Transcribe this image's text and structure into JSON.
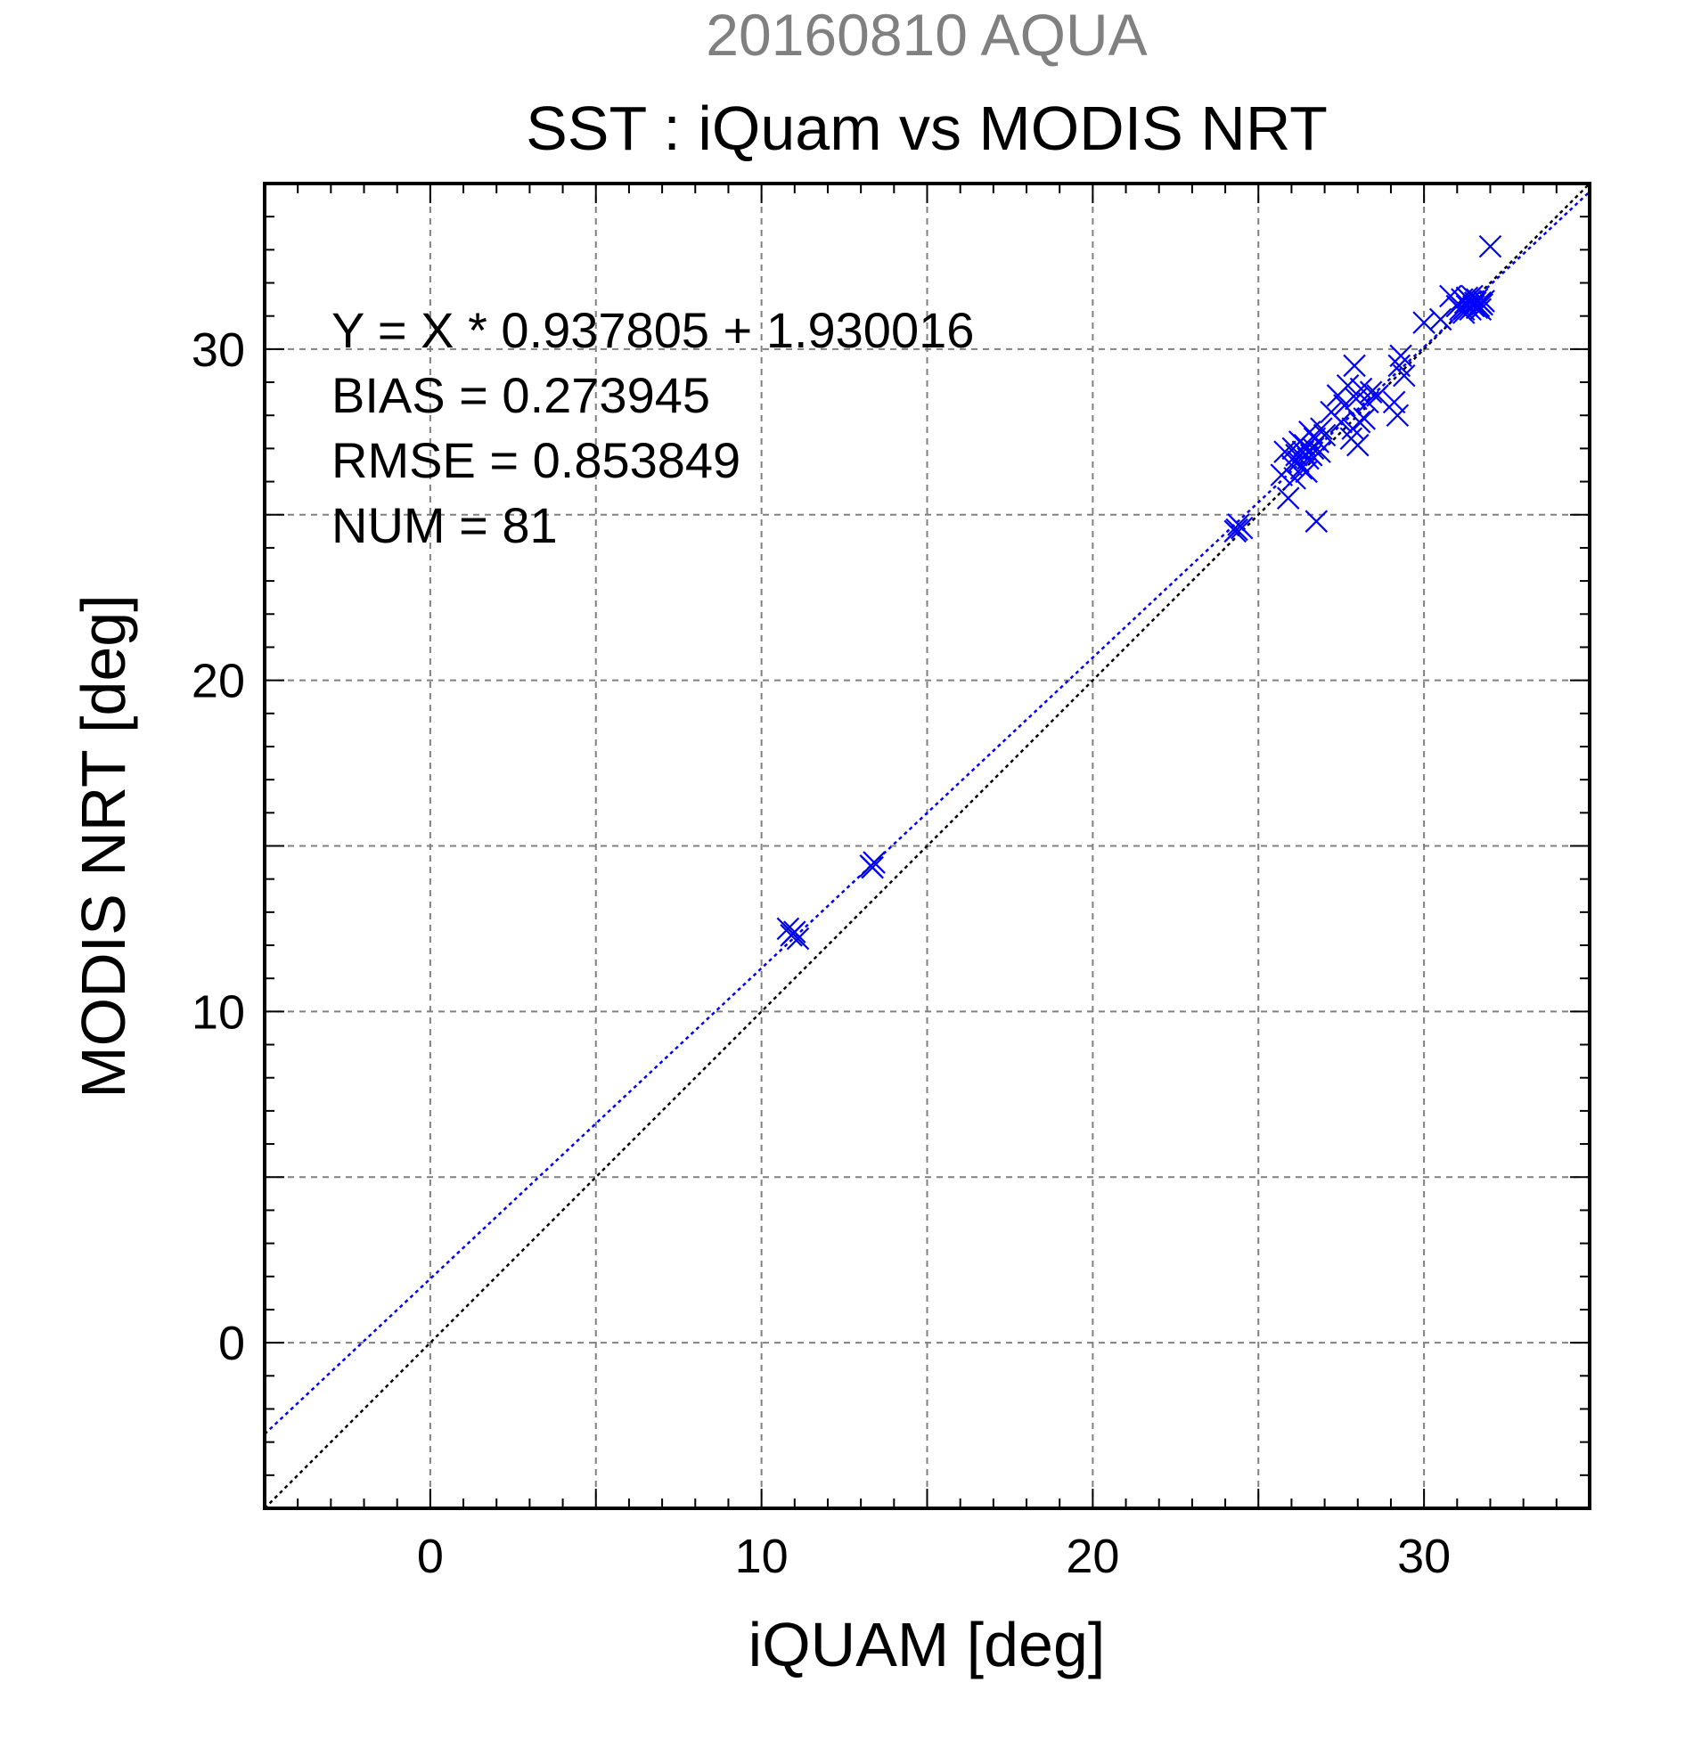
{
  "chart_data": {
    "type": "scatter",
    "header": "20160810 AQUA",
    "title": "SST : iQuam vs MODIS NRT",
    "xlabel": "iQUAM [deg]",
    "ylabel": "MODIS NRT [deg]",
    "xlim": [
      -5,
      35
    ],
    "ylim": [
      -5,
      35
    ],
    "xticks": [
      0,
      10,
      20,
      30
    ],
    "yticks": [
      0,
      10,
      20,
      30
    ],
    "xtick_labels": [
      "0",
      "10",
      "20",
      "30"
    ],
    "ytick_labels": [
      "0",
      "10",
      "20",
      "30"
    ],
    "grid": true,
    "marker": "x",
    "colors": {
      "points": "#0000ff",
      "fit_line": "#0000ff",
      "identity_line": "#000000",
      "header": "#808080",
      "grid": "#808080"
    },
    "annotations": [
      "Y = X * 0.937805 + 1.930016",
      "BIAS = 0.273945",
      "RMSE = 0.853849",
      "NUM = 81"
    ],
    "fit": {
      "slope": 0.937805,
      "intercept": 1.930016
    },
    "identity_line": true,
    "points": [
      [
        10.9,
        12.3
      ],
      [
        11.0,
        12.4
      ],
      [
        10.8,
        12.5
      ],
      [
        11.1,
        12.2
      ],
      [
        10.95,
        12.35
      ],
      [
        13.3,
        14.4
      ],
      [
        13.4,
        14.5
      ],
      [
        13.35,
        14.35
      ],
      [
        24.3,
        24.5
      ],
      [
        24.4,
        24.7
      ],
      [
        24.5,
        24.6
      ],
      [
        24.35,
        24.55
      ],
      [
        25.7,
        26.2
      ],
      [
        25.8,
        26.9
      ],
      [
        25.9,
        25.5
      ],
      [
        26.0,
        26.5
      ],
      [
        26.05,
        27.0
      ],
      [
        26.1,
        26.1
      ],
      [
        26.15,
        26.8
      ],
      [
        26.2,
        26.6
      ],
      [
        26.25,
        27.2
      ],
      [
        26.3,
        26.4
      ],
      [
        26.35,
        26.9
      ],
      [
        26.4,
        27.1
      ],
      [
        26.45,
        26.3
      ],
      [
        26.5,
        26.7
      ],
      [
        26.55,
        27.5
      ],
      [
        26.6,
        26.8
      ],
      [
        26.65,
        27.0
      ],
      [
        26.7,
        27.3
      ],
      [
        26.75,
        24.8
      ],
      [
        26.8,
        27.2
      ],
      [
        26.85,
        26.9
      ],
      [
        26.9,
        27.6
      ],
      [
        27.0,
        27.4
      ],
      [
        27.2,
        28.1
      ],
      [
        27.4,
        28.6
      ],
      [
        27.5,
        27.8
      ],
      [
        27.6,
        28.3
      ],
      [
        27.7,
        28.9
      ],
      [
        27.8,
        27.3
      ],
      [
        27.85,
        27.6
      ],
      [
        27.9,
        29.5
      ],
      [
        27.95,
        28.5
      ],
      [
        28.0,
        27.1
      ],
      [
        28.05,
        27.8
      ],
      [
        28.1,
        28.8
      ],
      [
        28.2,
        27.9
      ],
      [
        28.3,
        28.4
      ],
      [
        28.4,
        28.7
      ],
      [
        28.6,
        28.6
      ],
      [
        29.1,
        28.4
      ],
      [
        29.2,
        28.0
      ],
      [
        29.25,
        29.5
      ],
      [
        29.3,
        29.8
      ],
      [
        29.4,
        29.2
      ],
      [
        30.0,
        30.8
      ],
      [
        30.5,
        30.9
      ],
      [
        30.8,
        31.6
      ],
      [
        31.0,
        31.3
      ],
      [
        31.1,
        31.2
      ],
      [
        31.15,
        31.5
      ],
      [
        31.2,
        31.1
      ],
      [
        31.25,
        31.4
      ],
      [
        31.3,
        31.3
      ],
      [
        31.35,
        31.5
      ],
      [
        31.4,
        31.2
      ],
      [
        31.45,
        31.6
      ],
      [
        31.5,
        31.3
      ],
      [
        31.55,
        31.4
      ],
      [
        31.6,
        31.5
      ],
      [
        31.65,
        31.3
      ],
      [
        31.7,
        31.4
      ],
      [
        31.75,
        31.35
      ],
      [
        31.8,
        31.45
      ],
      [
        31.2,
        31.2
      ],
      [
        31.4,
        31.45
      ],
      [
        31.6,
        31.25
      ],
      [
        31.3,
        31.55
      ],
      [
        31.7,
        31.2
      ],
      [
        32.0,
        33.1
      ]
    ]
  }
}
